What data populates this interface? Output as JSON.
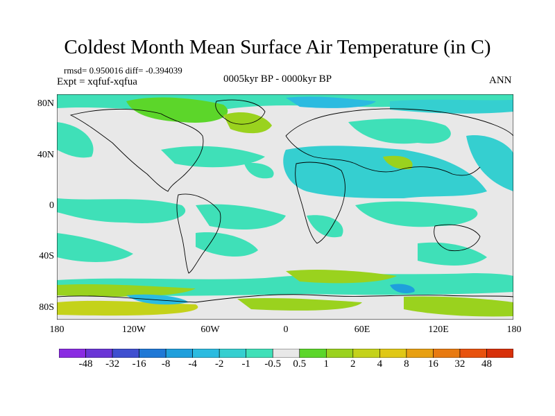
{
  "title": "Coldest Month Mean Surface Air Temperature (in C)",
  "stats": "rmsd= 0.950016 diff= -0.394039",
  "expt": "Expt = xqfuf-xqfua",
  "period": "0005kyr BP - 0000kyr BP",
  "season": "ANN",
  "lat_labels": [
    "80N",
    "40N",
    "0",
    "40S",
    "80S"
  ],
  "lon_labels": [
    "180",
    "120W",
    "60W",
    "0",
    "60E",
    "120E",
    "180"
  ],
  "colorbar": {
    "labels": [
      "-48",
      "-32",
      "-16",
      "-8",
      "-4",
      "-2",
      "-1",
      "-0.5",
      "0.5",
      "1",
      "2",
      "4",
      "8",
      "16",
      "32",
      "48"
    ],
    "colors": [
      "#8a2be2",
      "#6a35d6",
      "#3f4fd0",
      "#1f78d6",
      "#1f9fdc",
      "#2bbbe0",
      "#35cfd0",
      "#3fe0b8",
      "#e8e8e8",
      "#5cd62a",
      "#9ad21e",
      "#c4d21a",
      "#e0c816",
      "#e8a012",
      "#e87a10",
      "#e8520e",
      "#d8300a"
    ]
  }
}
